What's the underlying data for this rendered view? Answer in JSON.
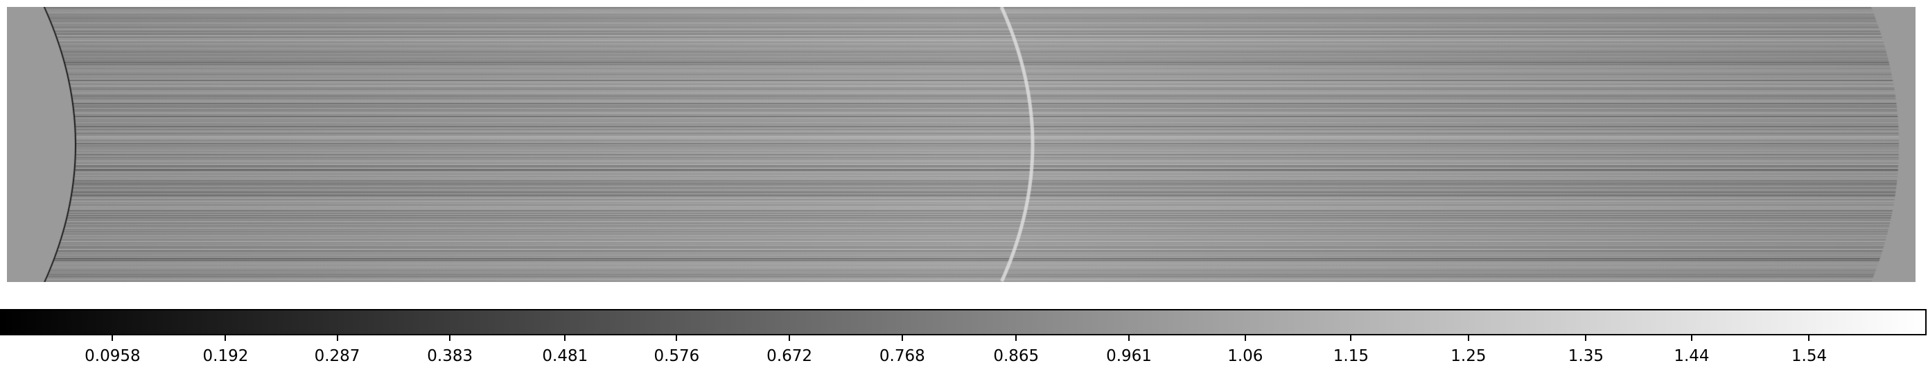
{
  "image": {
    "description_kind": "2D flat-field / spectral image in grayscale with curved illuminated region",
    "colormap": "gray",
    "background_color": "#9a9a9a"
  },
  "colorbar": {
    "min": 0.0,
    "max": 1.64,
    "tick_labels": [
      "0.0958",
      "0.192",
      "0.287",
      "0.383",
      "0.481",
      "0.576",
      "0.672",
      "0.768",
      "0.865",
      "0.961",
      "1.06",
      "1.15",
      "1.25",
      "1.35",
      "1.44",
      "1.54"
    ],
    "tick_values": [
      0.0958,
      0.192,
      0.287,
      0.383,
      0.481,
      0.576,
      0.672,
      0.768,
      0.865,
      0.961,
      1.06,
      1.15,
      1.25,
      1.35,
      1.44,
      1.54
    ]
  }
}
